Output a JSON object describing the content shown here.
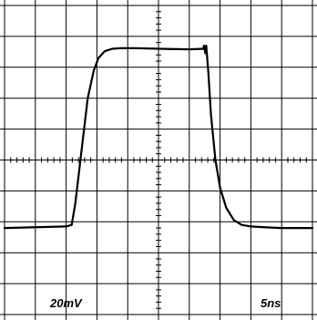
{
  "chart_data": {
    "type": "line",
    "title": "",
    "xlabel": "",
    "ylabel": "",
    "grid": true,
    "divisions": {
      "x": 10,
      "y": 10
    },
    "minor_ticks_per_division": 5,
    "xlim": [
      0,
      10
    ],
    "ylim": [
      0,
      10
    ],
    "vertical_scale": "20mV",
    "horizontal_scale": "5ns",
    "series": [
      {
        "x": [
          0.0,
          2.0,
          2.18,
          2.3,
          2.5,
          2.7,
          2.9,
          3.05,
          3.25,
          3.5,
          3.8,
          4.2,
          5.0,
          6.0,
          6.45,
          6.48,
          6.52,
          6.55,
          6.62,
          6.7,
          6.85,
          7.0,
          7.2,
          7.45,
          7.7,
          8.0,
          8.5,
          9.0,
          10.0
        ],
        "y": [
          2.8,
          2.85,
          2.9,
          3.6,
          5.3,
          7.0,
          7.9,
          8.3,
          8.52,
          8.6,
          8.62,
          8.62,
          8.6,
          8.58,
          8.6,
          8.7,
          8.45,
          8.7,
          7.8,
          6.5,
          5.0,
          4.1,
          3.45,
          3.05,
          2.9,
          2.85,
          2.82,
          2.8,
          2.8
        ]
      }
    ]
  }
}
